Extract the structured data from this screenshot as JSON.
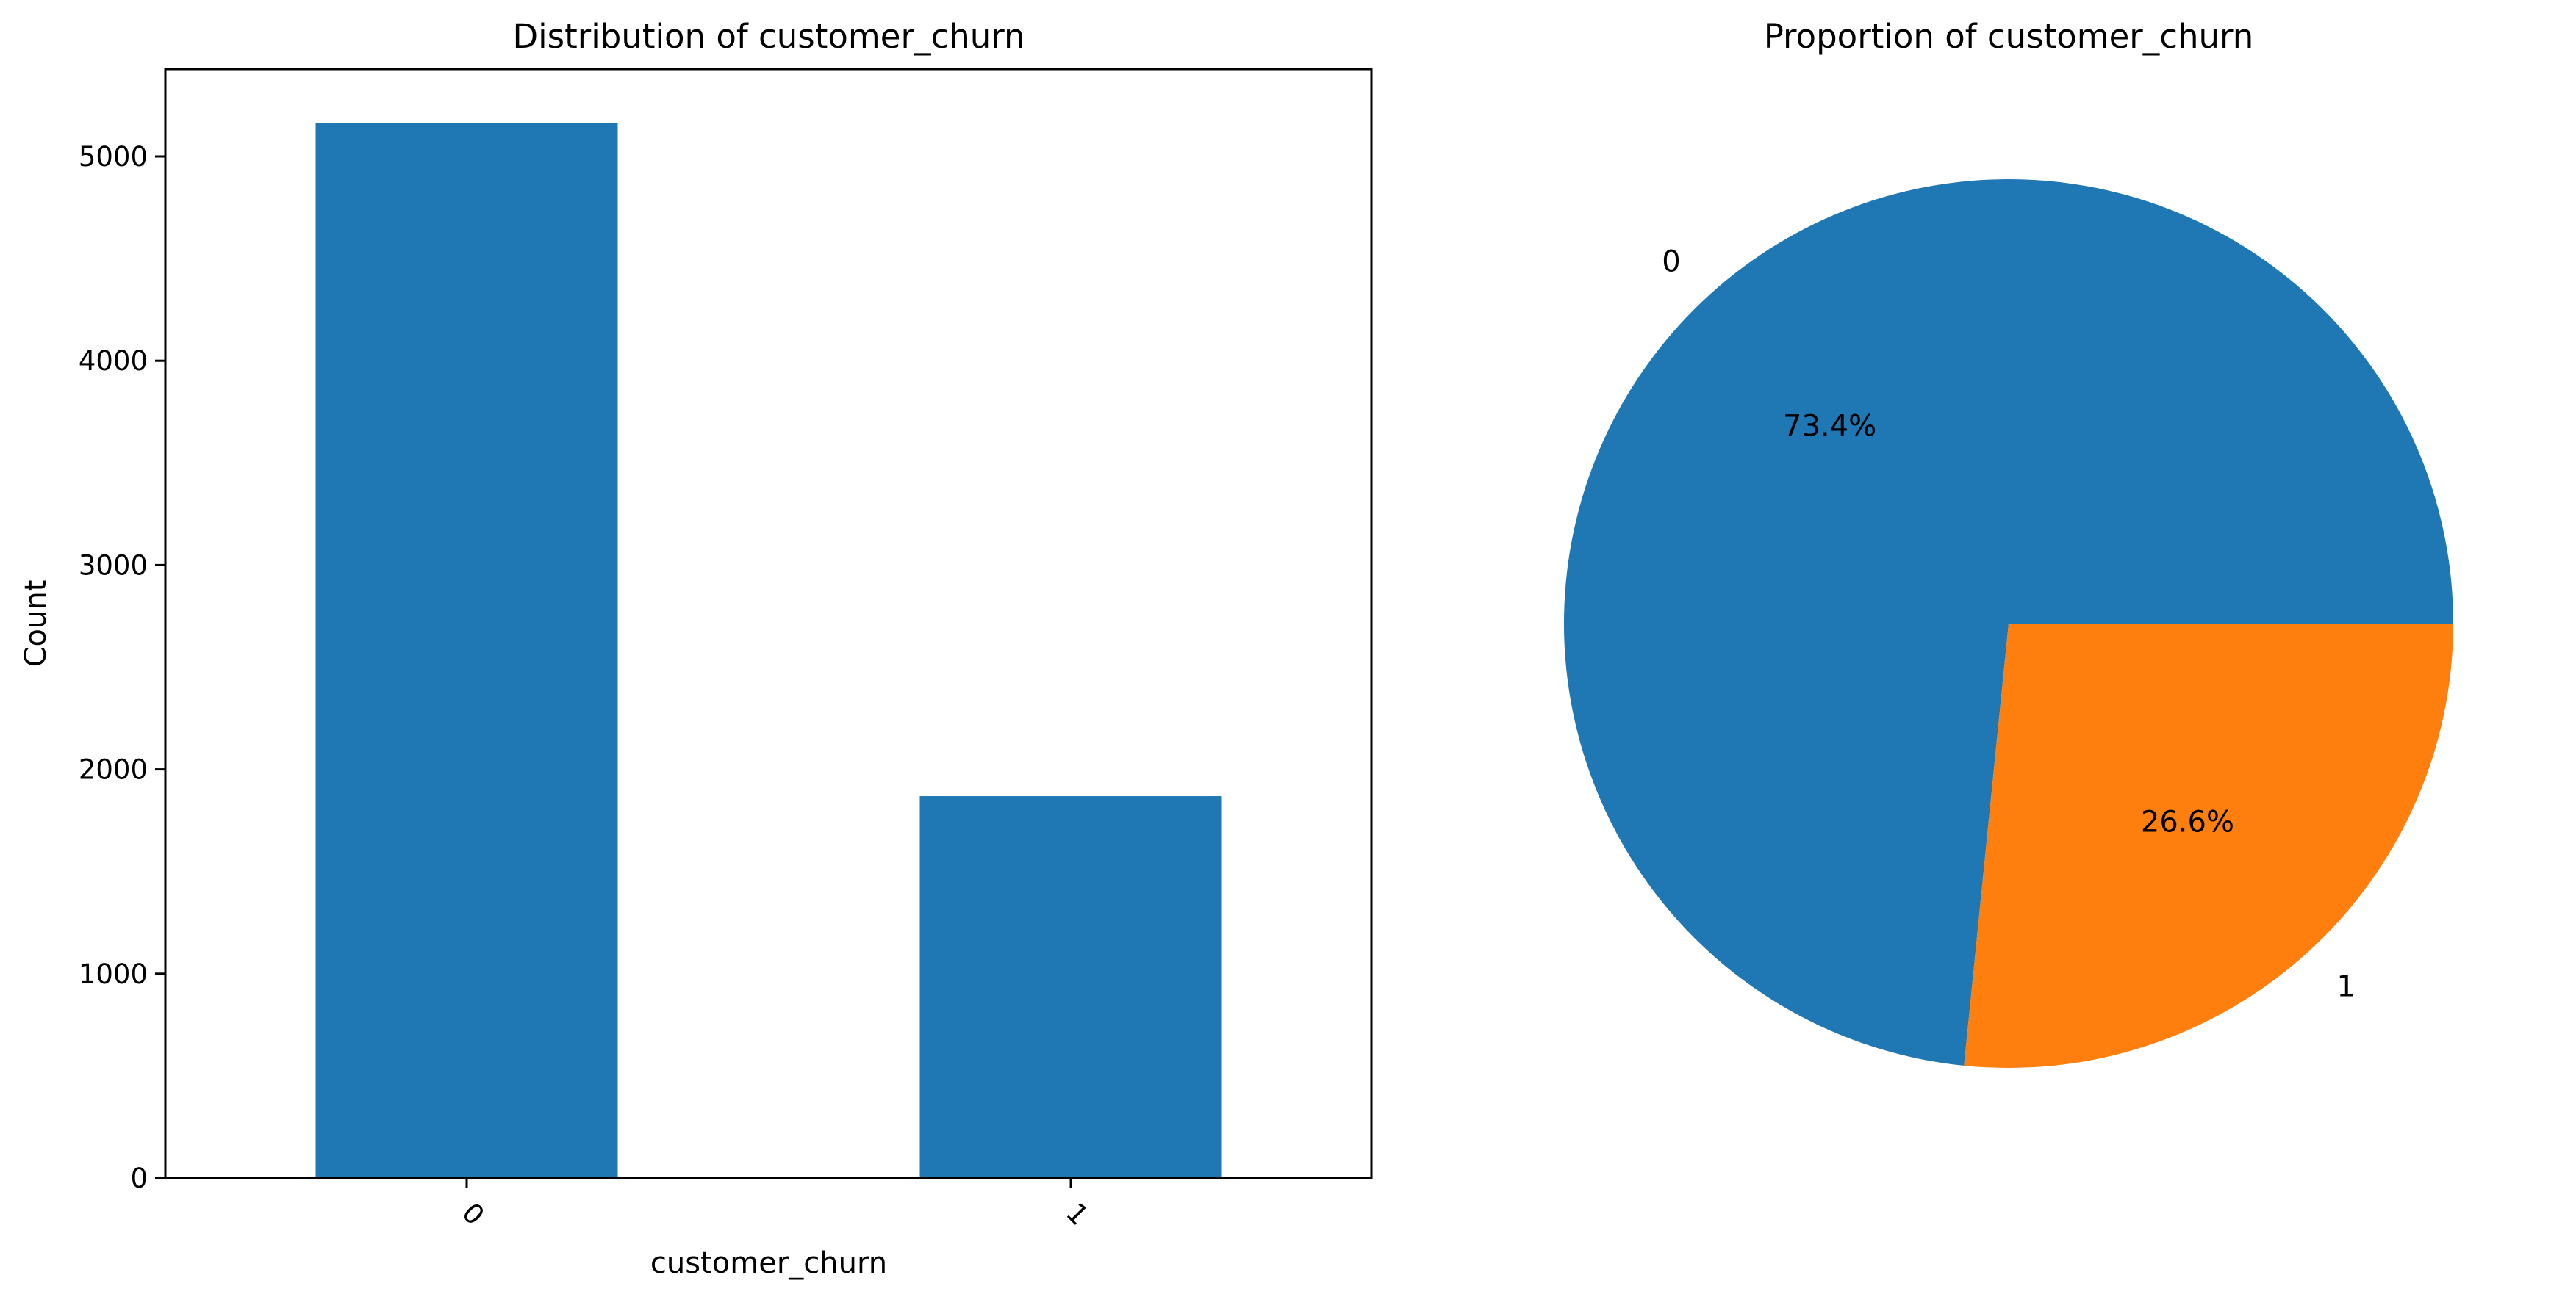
{
  "chart_data": [
    {
      "type": "bar",
      "title": "Distribution of customer_churn",
      "xlabel": "customer_churn",
      "ylabel": "Count",
      "categories": [
        "0",
        "1"
      ],
      "values": [
        5163,
        1869
      ],
      "ylim": [
        0,
        5400
      ],
      "yticks": [
        0,
        1000,
        2000,
        3000,
        4000,
        5000
      ],
      "xtick_rotation": 45,
      "grid": false,
      "color": "#1f77b4"
    },
    {
      "type": "pie",
      "title": "Proportion of customer_churn",
      "labels": [
        "0",
        "1"
      ],
      "values": [
        73.4,
        26.6
      ],
      "pct_labels": [
        "73.4%",
        "26.6%"
      ],
      "colors": [
        "#1f77b4",
        "#ff7f0e"
      ]
    }
  ]
}
